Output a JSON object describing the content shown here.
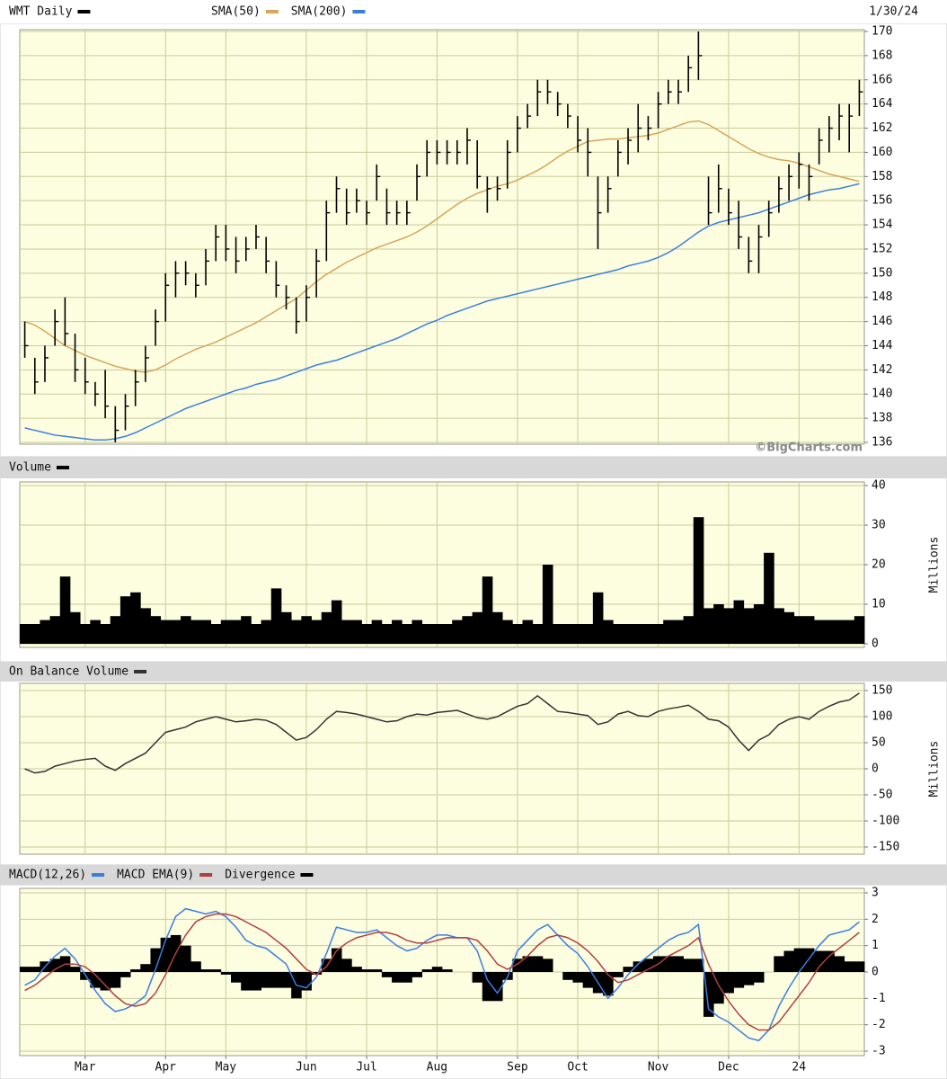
{
  "chart_data": [
    {
      "type": "ohlc",
      "title": "WMT Daily",
      "date_label": "1/30/24",
      "color": "#000000",
      "ylim": [
        136,
        170
      ],
      "yticks": [
        136,
        138,
        140,
        142,
        144,
        146,
        148,
        150,
        152,
        154,
        156,
        158,
        160,
        162,
        164,
        166,
        168,
        170
      ],
      "high": [
        146,
        143,
        144,
        147,
        148,
        145,
        143,
        141,
        142,
        139,
        140,
        142,
        144,
        147,
        150,
        151,
        151,
        150,
        152,
        154,
        154,
        153,
        153,
        154,
        153,
        151,
        149,
        148,
        149,
        152,
        156,
        158,
        157,
        157,
        156,
        159,
        157,
        156,
        156,
        159,
        161,
        161,
        161,
        161,
        162,
        161,
        158,
        158,
        161,
        163,
        164,
        166,
        166,
        165,
        164,
        163,
        162,
        158,
        158,
        161,
        162,
        164,
        163,
        165,
        166,
        166,
        168,
        170,
        158,
        159,
        157,
        156,
        153,
        154,
        156,
        158,
        159,
        160,
        159,
        162,
        163,
        164,
        164,
        166
      ],
      "low": [
        143,
        140,
        141,
        144,
        144,
        141,
        140,
        139,
        138,
        136,
        137,
        139,
        141,
        144,
        146,
        148,
        149,
        148,
        149,
        151,
        151,
        150,
        151,
        152,
        150,
        148,
        147,
        145,
        146,
        148,
        151,
        155,
        154,
        155,
        154,
        156,
        154,
        154,
        154,
        156,
        158,
        159,
        159,
        159,
        159,
        157,
        155,
        156,
        157,
        160,
        162,
        163,
        164,
        163,
        162,
        160,
        158,
        152,
        155,
        158,
        159,
        160,
        161,
        162,
        164,
        164,
        165,
        166,
        154,
        155,
        154,
        152,
        150,
        150,
        153,
        155,
        156,
        157,
        156,
        159,
        160,
        161,
        160,
        163
      ],
      "close": [
        144,
        141,
        143,
        146,
        145,
        142,
        141,
        140,
        139,
        137,
        139,
        141,
        143,
        146,
        149,
        150,
        150,
        149,
        151,
        153,
        152,
        151,
        152,
        153,
        151,
        149,
        148,
        146,
        148,
        151,
        155,
        157,
        155,
        156,
        155,
        158,
        155,
        155,
        155,
        158,
        160,
        160,
        160,
        160,
        161,
        158,
        157,
        157,
        160,
        162,
        163,
        165,
        165,
        164,
        163,
        161,
        160,
        155,
        157,
        160,
        161,
        162,
        162,
        164,
        165,
        165,
        167,
        168,
        155,
        157,
        155,
        153,
        151,
        153,
        155,
        157,
        158,
        159,
        158,
        161,
        162,
        163,
        163,
        165
      ],
      "series": [
        {
          "name": "SMA(50)",
          "color": "#d6a65a",
          "values": [
            146,
            145.7,
            145.2,
            144.6,
            144,
            143.6,
            143.2,
            142.9,
            142.6,
            142.3,
            142.1,
            141.9,
            141.8,
            142,
            142.4,
            142.9,
            143.3,
            143.7,
            144,
            144.3,
            144.7,
            145.1,
            145.5,
            145.9,
            146.4,
            146.9,
            147.4,
            147.9,
            148.6,
            149.3,
            149.9,
            150.4,
            150.9,
            151.3,
            151.7,
            152.1,
            152.4,
            152.7,
            153,
            153.4,
            153.9,
            154.5,
            155.1,
            155.7,
            156.2,
            156.6,
            156.9,
            157.2,
            157.4,
            157.7,
            158.1,
            158.5,
            159,
            159.6,
            160.1,
            160.5,
            160.9,
            161,
            161.1,
            161.1,
            161.2,
            161.3,
            161.4,
            161.6,
            161.9,
            162.2,
            162.5,
            162.6,
            162.3,
            161.8,
            161.3,
            160.8,
            160.3,
            159.9,
            159.6,
            159.4,
            159.3,
            159.1,
            158.8,
            158.5,
            158.2,
            158,
            157.8,
            157.6
          ]
        },
        {
          "name": "SMA(200)",
          "color": "#3a7fe0",
          "values": [
            137.2,
            137,
            136.8,
            136.6,
            136.5,
            136.4,
            136.3,
            136.2,
            136.2,
            136.3,
            136.5,
            136.8,
            137.2,
            137.6,
            138,
            138.4,
            138.8,
            139.1,
            139.4,
            139.7,
            140,
            140.3,
            140.5,
            140.8,
            141,
            141.2,
            141.5,
            141.8,
            142.1,
            142.4,
            142.6,
            142.8,
            143.1,
            143.4,
            143.7,
            144,
            144.3,
            144.6,
            145,
            145.4,
            145.8,
            146.1,
            146.5,
            146.8,
            147.1,
            147.4,
            147.7,
            147.9,
            148.1,
            148.3,
            148.5,
            148.7,
            148.9,
            149.1,
            149.3,
            149.5,
            149.7,
            149.9,
            150.1,
            150.3,
            150.6,
            150.8,
            151,
            151.3,
            151.7,
            152.2,
            152.8,
            153.4,
            153.9,
            154.2,
            154.4,
            154.6,
            154.8,
            155,
            155.3,
            155.6,
            155.9,
            156.2,
            156.5,
            156.7,
            156.9,
            157,
            157.2,
            157.4
          ]
        }
      ]
    },
    {
      "type": "bar",
      "credit": "©BigCharts.com",
      "y_label": "Millions",
      "ylim": [
        0,
        40
      ],
      "yticks": [
        0,
        10,
        20,
        30,
        40
      ],
      "series": [
        {
          "name": "Volume",
          "color": "#000000",
          "values": [
            5,
            5,
            6,
            7,
            17,
            8,
            5,
            6,
            5,
            7,
            12,
            13,
            9,
            7,
            6,
            6,
            7,
            6,
            6,
            5,
            6,
            6,
            7,
            5,
            6,
            14,
            8,
            6,
            7,
            6,
            8,
            11,
            6,
            6,
            5,
            6,
            5,
            6,
            5,
            6,
            5,
            5,
            5,
            6,
            7,
            8,
            17,
            8,
            6,
            5,
            6,
            5,
            20,
            5,
            5,
            5,
            5,
            13,
            6,
            5,
            5,
            5,
            5,
            5,
            6,
            6,
            7,
            32,
            9,
            10,
            9,
            11,
            9,
            10,
            23,
            9,
            8,
            7,
            7,
            6,
            6,
            6,
            6,
            7
          ]
        }
      ]
    },
    {
      "type": "line",
      "y_label": "Millions",
      "ylim": [
        -150,
        150
      ],
      "yticks": [
        -150,
        -100,
        -50,
        0,
        50,
        100,
        150
      ],
      "series": [
        {
          "name": "On Balance Volume",
          "color": "#333333",
          "values": [
            0,
            -8,
            -5,
            5,
            10,
            15,
            18,
            20,
            5,
            -3,
            10,
            20,
            30,
            50,
            70,
            75,
            80,
            90,
            95,
            100,
            95,
            90,
            92,
            95,
            93,
            85,
            70,
            55,
            60,
            75,
            95,
            110,
            108,
            105,
            100,
            95,
            90,
            92,
            100,
            105,
            103,
            108,
            110,
            112,
            105,
            98,
            95,
            100,
            110,
            120,
            125,
            140,
            125,
            110,
            108,
            105,
            102,
            85,
            90,
            105,
            110,
            102,
            100,
            110,
            115,
            118,
            122,
            110,
            95,
            92,
            80,
            55,
            35,
            55,
            65,
            85,
            95,
            100,
            95,
            110,
            120,
            128,
            132,
            145
          ]
        }
      ]
    },
    {
      "type": "macd",
      "ylim": [
        -3,
        3
      ],
      "yticks": [
        -3,
        -2,
        -1,
        0,
        1,
        2,
        3
      ],
      "xticks": [
        {
          "value": 6,
          "label": "Mar"
        },
        {
          "value": 14,
          "label": "Apr"
        },
        {
          "value": 20,
          "label": "May"
        },
        {
          "value": 28,
          "label": "Jun"
        },
        {
          "value": 34,
          "label": "Jul"
        },
        {
          "value": 41,
          "label": "Aug"
        },
        {
          "value": 49,
          "label": "Sep"
        },
        {
          "value": 55,
          "label": "Oct"
        },
        {
          "value": 63,
          "label": "Nov"
        },
        {
          "value": 70,
          "label": "Dec"
        },
        {
          "value": 77,
          "label": "24"
        }
      ],
      "series": [
        {
          "name": "MACD(12,26)",
          "color": "#3a7fe0",
          "values": [
            -0.5,
            -0.3,
            0.2,
            0.6,
            0.9,
            0.5,
            -0.1,
            -0.7,
            -1.2,
            -1.5,
            -1.4,
            -1.2,
            -0.9,
            0.1,
            1.2,
            2.1,
            2.4,
            2.3,
            2.2,
            2.3,
            2.1,
            1.7,
            1.2,
            1.0,
            0.9,
            0.6,
            0.3,
            -0.5,
            -0.6,
            -0.2,
            0.7,
            1.7,
            1.6,
            1.5,
            1.5,
            1.6,
            1.3,
            1.0,
            0.8,
            0.9,
            1.2,
            1.4,
            1.4,
            1.3,
            1.3,
            0.8,
            -0.3,
            -0.8,
            -0.2,
            0.8,
            1.2,
            1.6,
            1.8,
            1.4,
            1.0,
            0.7,
            0.2,
            -0.4,
            -1.0,
            -0.6,
            -0.1,
            0.3,
            0.6,
            0.9,
            1.2,
            1.4,
            1.5,
            1.8,
            -1.4,
            -1.7,
            -1.9,
            -2.2,
            -2.5,
            -2.6,
            -2.2,
            -1.3,
            -0.6,
            0.0,
            0.5,
            1.0,
            1.4,
            1.5,
            1.6,
            1.9
          ]
        },
        {
          "name": "MACD EMA(9)",
          "color": "#b04040",
          "values": [
            -0.7,
            -0.5,
            -0.2,
            0.1,
            0.3,
            0.3,
            0.2,
            -0.1,
            -0.5,
            -0.9,
            -1.2,
            -1.3,
            -1.2,
            -0.8,
            -0.1,
            0.7,
            1.4,
            1.9,
            2.1,
            2.2,
            2.2,
            2.1,
            1.9,
            1.7,
            1.5,
            1.2,
            0.9,
            0.5,
            0.1,
            -0.1,
            0.2,
            0.8,
            1.1,
            1.3,
            1.4,
            1.5,
            1.5,
            1.4,
            1.2,
            1.1,
            1.1,
            1.2,
            1.3,
            1.3,
            1.3,
            1.2,
            0.8,
            0.3,
            0.1,
            0.3,
            0.6,
            1.0,
            1.3,
            1.4,
            1.3,
            1.1,
            0.8,
            0.4,
            -0.1,
            -0.4,
            -0.3,
            -0.1,
            0.1,
            0.3,
            0.6,
            0.8,
            1.0,
            1.3,
            0.3,
            -0.5,
            -1.1,
            -1.6,
            -2.0,
            -2.2,
            -2.2,
            -1.9,
            -1.4,
            -0.9,
            -0.4,
            0.2,
            0.6,
            0.9,
            1.2,
            1.5
          ]
        },
        {
          "name": "Divergence",
          "color": "#000000",
          "style": "histogram",
          "values": [
            0.2,
            0.2,
            0.4,
            0.5,
            0.6,
            0.2,
            -0.3,
            -0.6,
            -0.7,
            -0.6,
            -0.2,
            0.1,
            0.3,
            0.9,
            1.3,
            1.4,
            1.0,
            0.4,
            0.1,
            0.1,
            -0.1,
            -0.4,
            -0.7,
            -0.7,
            -0.6,
            -0.6,
            -0.6,
            -1.0,
            -0.7,
            -0.1,
            0.5,
            0.9,
            0.5,
            0.2,
            0.1,
            0.1,
            -0.2,
            -0.4,
            -0.4,
            -0.2,
            0.1,
            0.2,
            0.1,
            0,
            0,
            -0.4,
            -1.1,
            -1.1,
            -0.3,
            0.5,
            0.6,
            0.6,
            0.5,
            0,
            -0.3,
            -0.4,
            -0.6,
            -0.8,
            -0.9,
            -0.2,
            0.2,
            0.4,
            0.5,
            0.6,
            0.6,
            0.6,
            0.5,
            0.5,
            -1.7,
            -1.2,
            -0.8,
            -0.6,
            -0.5,
            -0.4,
            0,
            0.6,
            0.8,
            0.9,
            0.9,
            0.8,
            0.8,
            0.6,
            0.4,
            0.4
          ]
        }
      ]
    }
  ]
}
